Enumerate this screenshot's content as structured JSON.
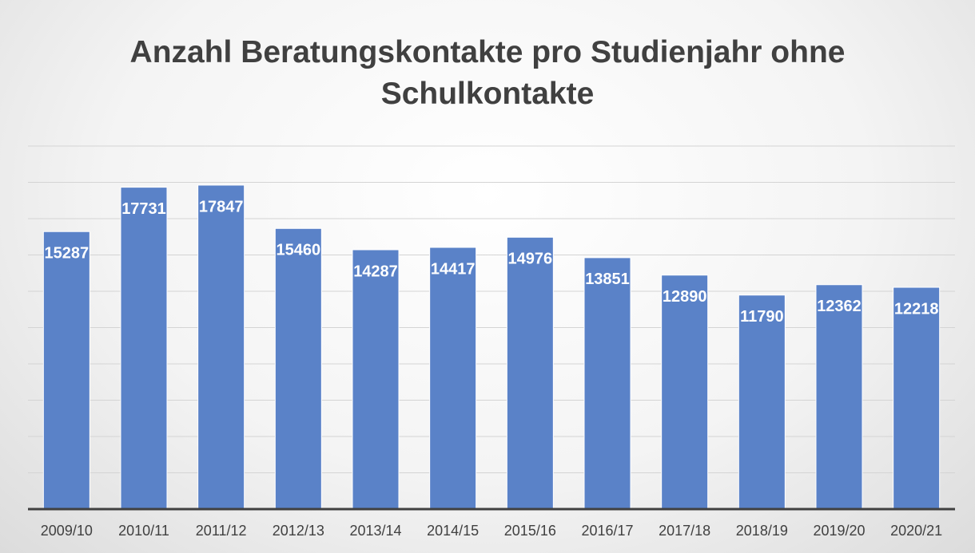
{
  "chart_data": {
    "type": "bar",
    "title": "Anzahl Beratungskontakte pro Studienjahr ohne Schulkontakte",
    "categories": [
      "2009/10",
      "2010/11",
      "2011/12",
      "2012/13",
      "2013/14",
      "2014/15",
      "2015/16",
      "2016/17",
      "2017/18",
      "2018/19",
      "2019/20",
      "2020/21"
    ],
    "values": [
      15287,
      17731,
      17847,
      15460,
      14287,
      14417,
      14976,
      13851,
      12890,
      11790,
      12362,
      12218
    ],
    "color": "#5a82c8",
    "ylim": [
      0,
      20000
    ],
    "yticks": [
      0,
      2000,
      4000,
      6000,
      8000,
      10000,
      12000,
      14000,
      16000,
      18000,
      20000
    ],
    "grid": true
  }
}
